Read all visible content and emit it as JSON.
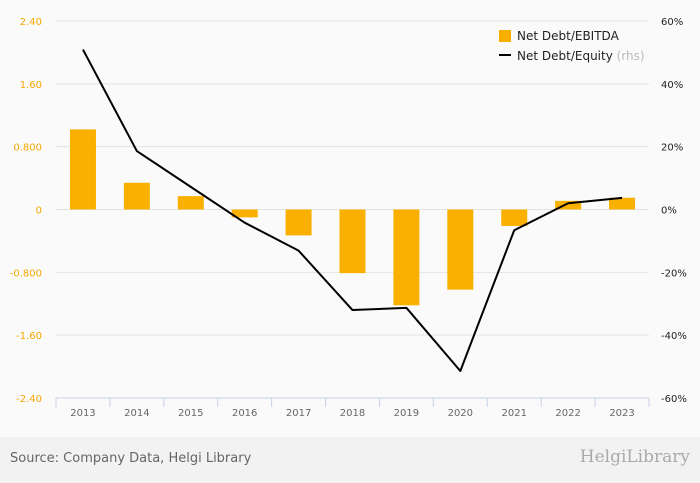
{
  "chart_data": {
    "type": "bar+line",
    "categories": [
      "2013",
      "2014",
      "2015",
      "2016",
      "2017",
      "2018",
      "2019",
      "2020",
      "2021",
      "2022",
      "2023"
    ],
    "series": [
      {
        "name": "Net Debt/EBITDA",
        "type": "bar",
        "axis": "left",
        "color": "#f9b000",
        "values": [
          1.02,
          0.34,
          0.17,
          -0.1,
          -0.33,
          -0.81,
          -1.22,
          -1.02,
          -0.21,
          0.11,
          0.15
        ]
      },
      {
        "name": "Net Debt/Equity",
        "suffix": "(rhs)",
        "type": "line",
        "axis": "right",
        "color": "#000000",
        "values": [
          50.9,
          18.6,
          7.2,
          -4.2,
          -13.1,
          -32.0,
          -31.3,
          -51.4,
          -6.6,
          2.0,
          3.7
        ]
      }
    ],
    "left_axis": {
      "ylim": [
        -2.4,
        2.4
      ],
      "ticks": [
        "2.40",
        "1.60",
        "0.800",
        "0",
        "-0.800",
        "-1.60",
        "-2.40"
      ],
      "tick_values": [
        2.4,
        1.6,
        0.8,
        0,
        -0.8,
        -1.6,
        -2.4
      ]
    },
    "right_axis": {
      "ylim": [
        -60,
        60
      ],
      "ticks": [
        "60%",
        "40%",
        "20%",
        "0%",
        "-20%",
        "-40%",
        "-60%"
      ],
      "tick_values": [
        60,
        40,
        20,
        0,
        -20,
        -40,
        -60
      ]
    },
    "grid": true,
    "legend_position": "top-right"
  },
  "footer": {
    "source": "Source: Company Data, Helgi Library",
    "logo": "HelgiLibrary"
  }
}
